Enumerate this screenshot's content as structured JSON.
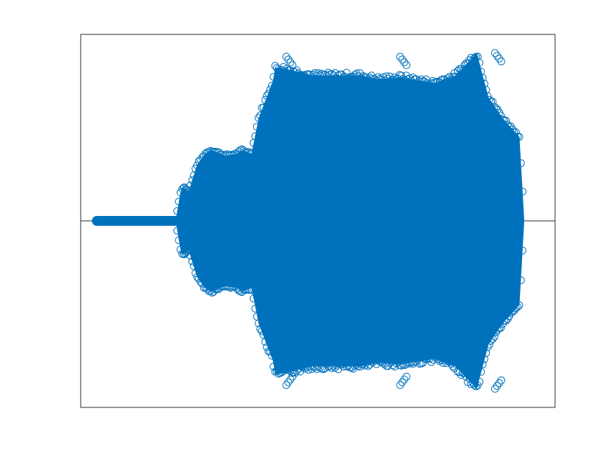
{
  "chart_data": {
    "type": "scatter",
    "title": "",
    "xlabel": "",
    "ylabel": "",
    "xlim": [
      0,
      1
    ],
    "ylim": [
      -1,
      1
    ],
    "ticks_visible": false,
    "grid": false,
    "legend": "none",
    "marker": "circle-open",
    "series_color": "#0072BD",
    "baseline_color": "#262626",
    "series": [
      {
        "envelope": {
          "x": [
            0.0,
            0.034,
            0.2,
            0.21,
            0.215,
            0.228,
            0.245,
            0.262,
            0.275,
            0.305,
            0.33,
            0.34,
            0.36,
            0.375,
            0.405,
            0.41,
            0.42,
            0.49,
            0.59,
            0.625,
            0.675,
            0.745,
            0.79,
            0.835,
            0.86,
            0.89,
            0.925,
            0.935
          ],
          "amplitude": [
            0.0,
            0.0,
            0.0,
            0.15,
            0.18,
            0.16,
            0.3,
            0.36,
            0.38,
            0.35,
            0.36,
            0.38,
            0.36,
            0.55,
            0.75,
            0.82,
            0.82,
            0.78,
            0.78,
            0.76,
            0.77,
            0.74,
            0.78,
            0.9,
            0.66,
            0.55,
            0.45,
            0.0
          ]
        },
        "peaks": [
          {
            "x": 0.225,
            "y": 0.18
          },
          {
            "x": 0.225,
            "y": -0.18
          },
          {
            "x": 0.39,
            "y": 0.38
          },
          {
            "x": 0.39,
            "y": -0.38
          },
          {
            "x": 0.44,
            "y": 0.88
          },
          {
            "x": 0.44,
            "y": -0.88
          },
          {
            "x": 0.68,
            "y": 0.88
          },
          {
            "x": 0.68,
            "y": -0.88
          },
          {
            "x": 0.88,
            "y": 0.9
          },
          {
            "x": 0.88,
            "y": -0.9
          }
        ]
      }
    ]
  }
}
